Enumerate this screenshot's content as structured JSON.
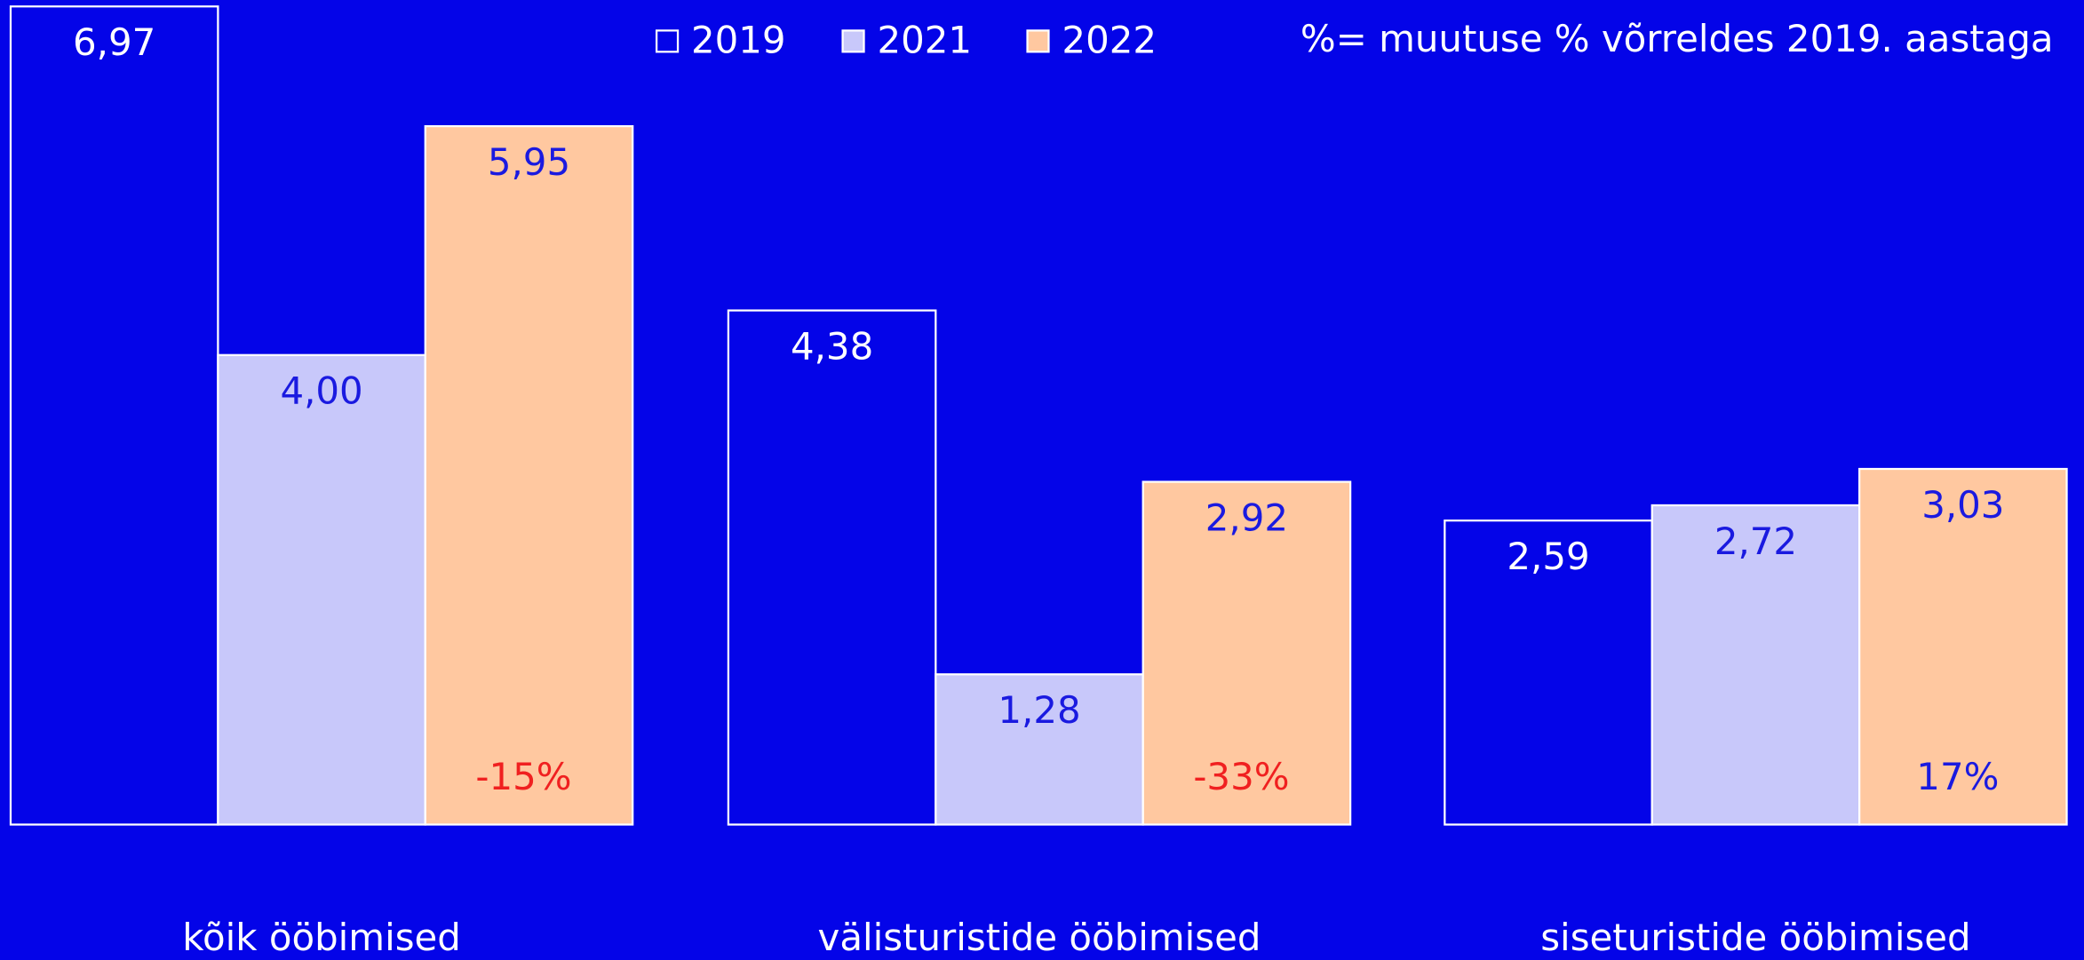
{
  "chart_data": {
    "type": "bar",
    "note": "%= muutuse % võrreldes 2019. aastaga",
    "categories": [
      "kõik ööbimised",
      "välisturistide ööbimised",
      "siseturistide ööbimised"
    ],
    "series": [
      {
        "name": "2019",
        "color": "#0404e8",
        "label_color": "#ffffff",
        "values": [
          6.97,
          4.38,
          2.59
        ],
        "value_labels": [
          "6,97",
          "4,38",
          "2,59"
        ]
      },
      {
        "name": "2021",
        "color": "#c8c8fa",
        "label_color": "#1a1ae0",
        "values": [
          4.0,
          1.28,
          2.72
        ],
        "value_labels": [
          "4,00",
          "1,28",
          "2,72"
        ]
      },
      {
        "name": "2022",
        "color": "#ffc8a0",
        "label_color": "#1a1ae0",
        "values": [
          5.95,
          2.92,
          3.03
        ],
        "value_labels": [
          "5,95",
          "2,92",
          "3,03"
        ]
      }
    ],
    "change_labels": [
      "-15%",
      "-33%",
      "17%"
    ],
    "change_label_colors": [
      "#f02020",
      "#f02020",
      "#1a1ae0"
    ],
    "ylim": [
      0,
      7
    ]
  }
}
